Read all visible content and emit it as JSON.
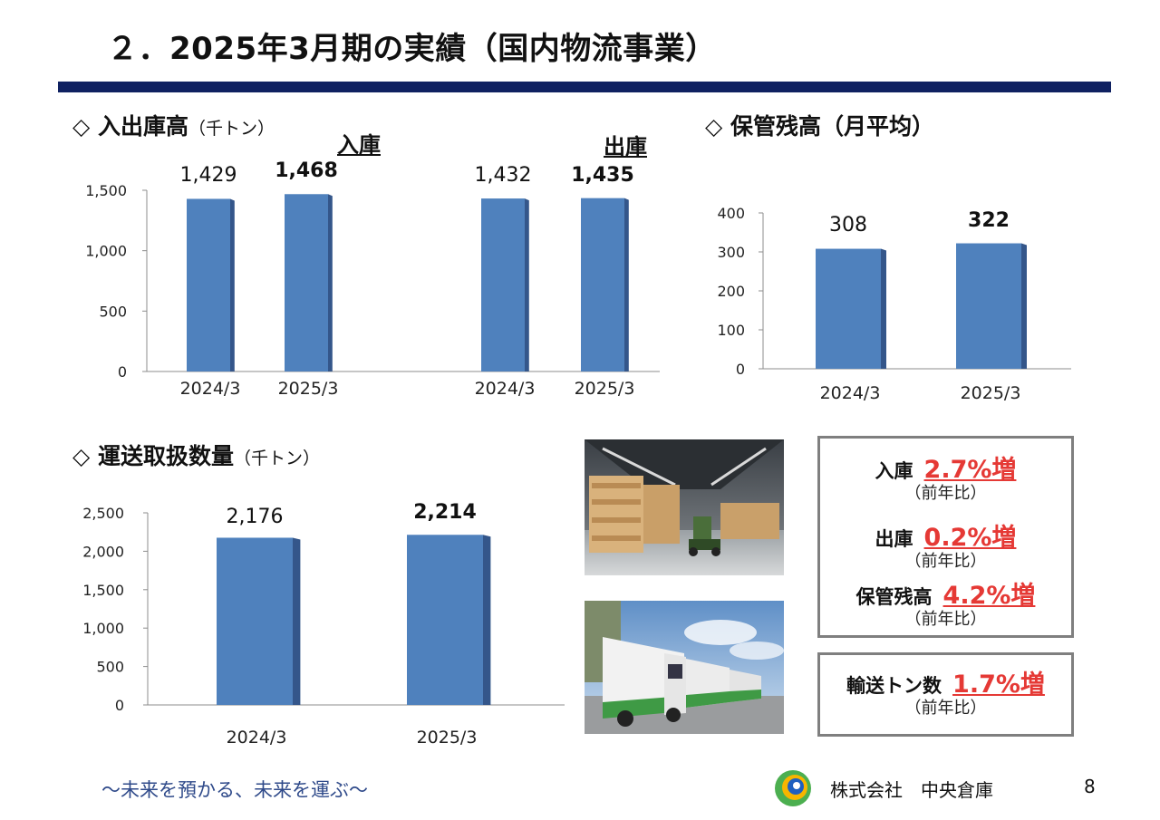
{
  "page": {
    "title": "２．2025年3月期の実績（国内物流事業）",
    "slogan": "～未来を預かる、未来を運ぶ～",
    "company": "株式会社　中央倉庫",
    "page_number": "8",
    "logo_icon": "company-logo-icon"
  },
  "sections": {
    "inout": {
      "marker": "◇",
      "title": "入出庫高",
      "unit": "（千トン）",
      "in_label": "入庫",
      "out_label": "出庫"
    },
    "storage": {
      "marker": "◇",
      "title": "保管残高（月平均）"
    },
    "transport": {
      "marker": "◇",
      "title": "運送取扱数量",
      "unit": "（千トン）"
    }
  },
  "chart_data": [
    {
      "id": "inout",
      "type": "bar",
      "title": "入出庫高",
      "categories": [
        "2024/3",
        "2025/3",
        "2024/3",
        "2025/3"
      ],
      "groups": [
        {
          "name": "入庫",
          "categories": [
            "2024/3",
            "2025/3"
          ],
          "values": [
            1429,
            1468
          ],
          "labels": [
            "1,429",
            "1,468"
          ]
        },
        {
          "name": "出庫",
          "categories": [
            "2024/3",
            "2025/3"
          ],
          "values": [
            1432,
            1435
          ],
          "labels": [
            "1,432",
            "1,435"
          ]
        }
      ],
      "ylim": [
        0,
        1500
      ],
      "yticks": [
        0,
        500,
        1000,
        1500
      ],
      "ytick_labels": [
        "0",
        "500",
        "1,000",
        "1,500"
      ],
      "bar_color": "#4f81bd",
      "bar_side_color": "#34568a"
    },
    {
      "id": "storage",
      "type": "bar",
      "title": "保管残高（月平均）",
      "categories": [
        "2024/3",
        "2025/3"
      ],
      "values": [
        308,
        322
      ],
      "labels": [
        "308",
        "322"
      ],
      "ylim": [
        0,
        400
      ],
      "yticks": [
        0,
        100,
        200,
        300,
        400
      ],
      "ytick_labels": [
        "0",
        "100",
        "200",
        "300",
        "400"
      ],
      "bar_color": "#4f81bd",
      "bar_side_color": "#34568a"
    },
    {
      "id": "transport",
      "type": "bar",
      "title": "運送取扱数量",
      "categories": [
        "2024/3",
        "2025/3"
      ],
      "values": [
        2176,
        2214
      ],
      "labels": [
        "2,176",
        "2,214"
      ],
      "ylim": [
        0,
        2500
      ],
      "yticks": [
        0,
        500,
        1000,
        1500,
        2000,
        2500
      ],
      "ytick_labels": [
        "0",
        "500",
        "1,000",
        "1,500",
        "2,000",
        "2,500"
      ],
      "bar_color": "#4f81bd",
      "bar_side_color": "#34568a"
    }
  ],
  "stats_box": {
    "items": [
      {
        "name": "入庫",
        "value": "2.7%増",
        "note": "（前年比）"
      },
      {
        "name": "出庫",
        "value": "0.2%増",
        "note": "（前年比）"
      },
      {
        "name": "保管残高",
        "value": "4.2%増",
        "note": "（前年比）"
      }
    ]
  },
  "transport_box": {
    "name": "輸送トン数",
    "value": "1.7%増",
    "note": "（前年比）"
  },
  "photos": {
    "warehouse": "warehouse-forklift-photo",
    "trucks": "trucks-photo"
  },
  "colors": {
    "title_bar": "#0f2161",
    "accent_red": "#e53935",
    "slogan": "#2f4a8a"
  }
}
